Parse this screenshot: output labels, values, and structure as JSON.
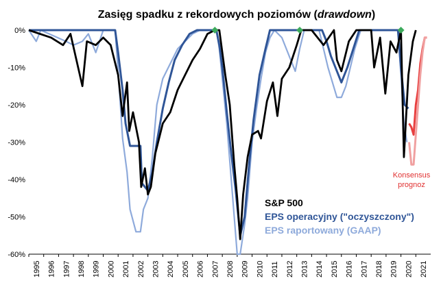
{
  "chart_data": {
    "type": "line",
    "title": "Zasięg spadku z rekordowych poziomów (",
    "title_emph": "drawdown",
    "title_end": ")",
    "xlabel": "",
    "ylabel": "",
    "ylim": [
      -60,
      2
    ],
    "xlim": [
      1995,
      2022
    ],
    "y_ticks": [
      "0%",
      "-10%",
      "-20%",
      "-30%",
      "-40%",
      "-50%",
      "-60%"
    ],
    "y_tick_values": [
      0,
      -10,
      -20,
      -30,
      -40,
      -50,
      -60
    ],
    "x_ticks": [
      "1995",
      "1996",
      "1997",
      "1998",
      "1999",
      "2000",
      "2001",
      "2002",
      "2003",
      "2004",
      "2005",
      "2006",
      "2007",
      "2008",
      "2009",
      "2010",
      "2011",
      "2012",
      "2013",
      "2014",
      "2015",
      "2016",
      "2017",
      "2018",
      "2019",
      "2020",
      "2021"
    ],
    "grid": false,
    "legend_position": "bottom-right-inside",
    "series": [
      {
        "name": "S&P 500",
        "color": "#000000",
        "points": [
          [
            1995,
            0
          ],
          [
            1996.5,
            -2
          ],
          [
            1997.3,
            -4
          ],
          [
            1997.8,
            -1
          ],
          [
            1998.6,
            -15
          ],
          [
            1998.9,
            -3
          ],
          [
            1999.5,
            -4
          ],
          [
            2000.0,
            -2
          ],
          [
            2000.5,
            -4
          ],
          [
            2001.0,
            -12
          ],
          [
            2001.3,
            -23
          ],
          [
            2001.6,
            -14
          ],
          [
            2001.75,
            -27
          ],
          [
            2002.0,
            -22
          ],
          [
            2002.4,
            -30
          ],
          [
            2002.55,
            -42
          ],
          [
            2002.8,
            -37
          ],
          [
            2003.0,
            -44
          ],
          [
            2003.2,
            -42
          ],
          [
            2003.5,
            -33
          ],
          [
            2004.0,
            -25
          ],
          [
            2004.5,
            -22
          ],
          [
            2005.0,
            -16
          ],
          [
            2005.5,
            -12
          ],
          [
            2006.0,
            -8
          ],
          [
            2006.5,
            -5
          ],
          [
            2007.0,
            -1
          ],
          [
            2007.5,
            0
          ],
          [
            2007.8,
            0
          ],
          [
            2008.2,
            -12
          ],
          [
            2008.5,
            -20
          ],
          [
            2008.8,
            -36
          ],
          [
            2009.0,
            -45
          ],
          [
            2009.2,
            -56
          ],
          [
            2009.4,
            -44
          ],
          [
            2009.7,
            -34
          ],
          [
            2010.0,
            -28
          ],
          [
            2010.4,
            -27
          ],
          [
            2010.6,
            -29
          ],
          [
            2011.0,
            -19
          ],
          [
            2011.4,
            -14
          ],
          [
            2011.7,
            -23
          ],
          [
            2012.0,
            -13
          ],
          [
            2012.5,
            -10
          ],
          [
            2013.0,
            -4
          ],
          [
            2013.3,
            0
          ],
          [
            2014.0,
            0
          ],
          [
            2014.8,
            -4
          ],
          [
            2015.5,
            0
          ],
          [
            2015.7,
            -8
          ],
          [
            2016.0,
            -11
          ],
          [
            2016.5,
            -3
          ],
          [
            2017.0,
            0
          ],
          [
            2018.0,
            0
          ],
          [
            2018.2,
            -10
          ],
          [
            2018.6,
            -2
          ],
          [
            2018.95,
            -17
          ],
          [
            2019.3,
            -3
          ],
          [
            2019.7,
            -6
          ],
          [
            2020.0,
            0
          ],
          [
            2020.2,
            -34
          ],
          [
            2020.5,
            -12
          ],
          [
            2020.8,
            -3
          ],
          [
            2021.0,
            0
          ]
        ]
      },
      {
        "name": "EPS operacyjny (\"oczyszczony\")",
        "color": "#2f5597",
        "points": [
          [
            1995,
            0
          ],
          [
            2000.8,
            0
          ],
          [
            2001.0,
            -6
          ],
          [
            2001.3,
            -16
          ],
          [
            2001.5,
            -25
          ],
          [
            2001.8,
            -31
          ],
          [
            2002.5,
            -31
          ],
          [
            2002.6,
            -41
          ],
          [
            2003.0,
            -43
          ],
          [
            2003.3,
            -38
          ],
          [
            2003.6,
            -30
          ],
          [
            2004.0,
            -21
          ],
          [
            2004.4,
            -14
          ],
          [
            2004.8,
            -8
          ],
          [
            2005.3,
            -4
          ],
          [
            2005.8,
            -1
          ],
          [
            2006.3,
            0
          ],
          [
            2007.6,
            0
          ],
          [
            2007.8,
            -4
          ],
          [
            2008.0,
            -10
          ],
          [
            2008.3,
            -22
          ],
          [
            2008.6,
            -33
          ],
          [
            2008.9,
            -43
          ],
          [
            2009.2,
            -55
          ],
          [
            2009.5,
            -50
          ],
          [
            2009.8,
            -36
          ],
          [
            2010.1,
            -24
          ],
          [
            2010.5,
            -12
          ],
          [
            2010.9,
            -5
          ],
          [
            2011.2,
            0
          ],
          [
            2014.7,
            0
          ],
          [
            2015.0,
            -3
          ],
          [
            2015.3,
            -7
          ],
          [
            2015.6,
            -10
          ],
          [
            2016.0,
            -14
          ],
          [
            2016.4,
            -10
          ],
          [
            2016.8,
            -5
          ],
          [
            2017.2,
            0
          ],
          [
            2019.8,
            0
          ],
          [
            2020.0,
            -10
          ],
          [
            2020.25,
            -20
          ],
          [
            2020.5,
            -21
          ]
        ]
      },
      {
        "name": "EPS raportowany (GAAP)",
        "color": "#8eaadb",
        "points": [
          [
            1995,
            0
          ],
          [
            1995.5,
            -3
          ],
          [
            1995.8,
            0
          ],
          [
            1997.5,
            -3
          ],
          [
            1998.0,
            -4
          ],
          [
            1998.6,
            -3
          ],
          [
            1999.0,
            -1
          ],
          [
            1999.5,
            -6
          ],
          [
            2000.0,
            0
          ],
          [
            2000.8,
            0
          ],
          [
            2001.0,
            -11
          ],
          [
            2001.3,
            -29
          ],
          [
            2001.6,
            -38
          ],
          [
            2001.8,
            -48
          ],
          [
            2002.2,
            -54
          ],
          [
            2002.5,
            -54
          ],
          [
            2002.7,
            -48
          ],
          [
            2003.0,
            -45
          ],
          [
            2003.3,
            -34
          ],
          [
            2003.6,
            -20
          ],
          [
            2004.0,
            -13
          ],
          [
            2004.5,
            -9
          ],
          [
            2005.0,
            -5
          ],
          [
            2005.5,
            -3
          ],
          [
            2006.0,
            -1
          ],
          [
            2006.5,
            0
          ],
          [
            2007.6,
            0
          ],
          [
            2007.8,
            -5
          ],
          [
            2008.0,
            -13
          ],
          [
            2008.3,
            -25
          ],
          [
            2008.6,
            -40
          ],
          [
            2008.9,
            -55
          ],
          [
            2009.0,
            -60
          ],
          [
            2009.2,
            -60
          ],
          [
            2009.5,
            -52
          ],
          [
            2009.7,
            -45
          ],
          [
            2010.0,
            -30
          ],
          [
            2010.3,
            -21
          ],
          [
            2010.6,
            -13
          ],
          [
            2010.9,
            -6
          ],
          [
            2011.2,
            -2
          ],
          [
            2011.5,
            0
          ],
          [
            2012.0,
            -2
          ],
          [
            2012.3,
            -5
          ],
          [
            2012.6,
            -8
          ],
          [
            2012.9,
            -11
          ],
          [
            2013.2,
            -5
          ],
          [
            2013.5,
            0
          ],
          [
            2014.5,
            0
          ],
          [
            2014.8,
            -5
          ],
          [
            2015.1,
            -10
          ],
          [
            2015.4,
            -14
          ],
          [
            2015.7,
            -18
          ],
          [
            2016.0,
            -18
          ],
          [
            2016.3,
            -15
          ],
          [
            2016.6,
            -10
          ],
          [
            2016.9,
            -5
          ],
          [
            2017.3,
            0
          ],
          [
            2019.8,
            0
          ],
          [
            2020.0,
            -12
          ],
          [
            2020.2,
            -25
          ],
          [
            2020.4,
            -30
          ]
        ]
      },
      {
        "name": "Konsensus prognoz",
        "color": "#e84040",
        "points": [
          [
            2020.55,
            -25
          ],
          [
            2020.7,
            -26
          ],
          [
            2020.85,
            -28
          ],
          [
            2021.0,
            -20
          ],
          [
            2021.15,
            -16
          ],
          [
            2021.3,
            -9
          ],
          [
            2021.45,
            -5
          ],
          [
            2021.6,
            -2
          ],
          [
            2021.75,
            -2
          ],
          [
            2020.55,
            -30
          ],
          [
            2020.7,
            -36
          ],
          [
            2020.85,
            -36
          ],
          [
            2021.0,
            -28
          ],
          [
            2021.15,
            -20
          ],
          [
            2021.3,
            -12
          ],
          [
            2021.45,
            -6
          ],
          [
            2021.6,
            -2
          ],
          [
            2021.75,
            -2
          ]
        ]
      }
    ],
    "markers": [
      {
        "x": 2007.5,
        "y": 0,
        "color": "#3daa5c"
      },
      {
        "x": 2013.2,
        "y": 0,
        "color": "#3daa5c"
      },
      {
        "x": 2020.0,
        "y": 0,
        "color": "#3daa5c"
      }
    ],
    "annotation": {
      "line1": "Konsensus",
      "line2": "prognoz",
      "color": "#e84040"
    }
  }
}
